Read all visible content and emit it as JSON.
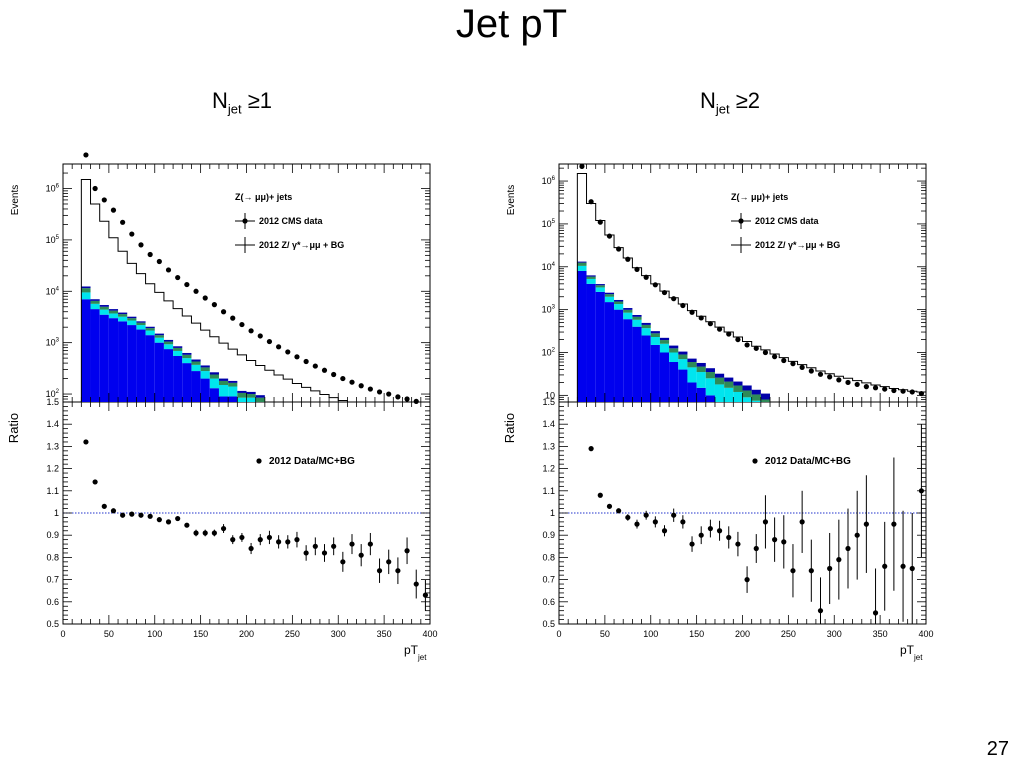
{
  "slide": {
    "title": "Jet pT",
    "panel_left_label": {
      "main": "N",
      "sub": "jet",
      "rest": " ≥1"
    },
    "panel_right_label": {
      "main": "N",
      "sub": "jet",
      "rest": " ≥2"
    },
    "page_number": "27"
  },
  "chart_data": [
    {
      "type": "bar",
      "subtype": "stacked-histogram-with-ratio",
      "title": "",
      "xlabel": "pT",
      "xlabel_sub": "jet",
      "xlim": [
        0,
        400
      ],
      "x_ticks": [
        0,
        50,
        100,
        150,
        200,
        250,
        300,
        350,
        400
      ],
      "x_tick_labels": [
        "0",
        "50",
        "100",
        "150",
        "200",
        "250",
        "300",
        "350",
        "400"
      ],
      "upper": {
        "ylabel": "Events",
        "yscale": "log",
        "ylim": [
          70,
          3000000
        ],
        "y_ticks": [
          100,
          1000,
          10000,
          100000,
          1000000
        ],
        "y_tick_labels": [
          {
            "base": "10",
            "exp": "2"
          },
          {
            "base": "10",
            "exp": "3"
          },
          {
            "base": "10",
            "exp": "4"
          },
          {
            "base": "10",
            "exp": "5"
          },
          {
            "base": "10",
            "exp": "6"
          }
        ],
        "legend_title": "Z(→ μμ)+ jets",
        "legend_placement": "top-right",
        "legend": [
          {
            "label": "2012 CMS data",
            "style": "marker"
          },
          {
            "label": "2012 Z/ γ*→μμ + BG",
            "style": "line"
          }
        ],
        "bin_edges": [
          20,
          30,
          40,
          50,
          60,
          70,
          80,
          90,
          100,
          110,
          120,
          130,
          140,
          150,
          160,
          170,
          180,
          190,
          200,
          210,
          220,
          230,
          240,
          250,
          260,
          270,
          280,
          290,
          300,
          310,
          320,
          330,
          340,
          350,
          360,
          370,
          380,
          390,
          400
        ],
        "mc_total": [
          1500000,
          500000,
          230000,
          110000,
          60000,
          35000,
          22000,
          14000,
          9500,
          6500,
          4600,
          3300,
          2400,
          1750,
          1300,
          980,
          750,
          580,
          450,
          360,
          290,
          235,
          195,
          160,
          135,
          115,
          98,
          85,
          75,
          66,
          58,
          52,
          46,
          42,
          38,
          35,
          32,
          30
        ],
        "data_x": [
          25,
          35,
          45,
          55,
          65,
          75,
          85,
          95,
          105,
          115,
          125,
          135,
          145,
          155,
          165,
          175,
          185,
          195,
          205,
          215,
          225,
          235,
          245,
          255,
          265,
          275,
          285,
          295,
          305,
          315,
          325,
          335,
          345,
          355,
          365,
          375,
          385,
          395
        ],
        "data_y": [
          4500000,
          1000000,
          600000,
          380000,
          220000,
          130000,
          80000,
          52000,
          38000,
          26000,
          18500,
          13500,
          10000,
          7400,
          5500,
          4000,
          3000,
          2250,
          1700,
          1350,
          1050,
          830,
          660,
          530,
          430,
          350,
          290,
          240,
          200,
          170,
          145,
          125,
          110,
          100,
          88,
          80,
          72,
          66
        ],
        "stack": [
          {
            "name": "",
            "color": "#0000ee",
            "values": [
              7000,
              4500,
              3500,
              3000,
              2600,
              2200,
              1800,
              1400,
              1000,
              750,
              550,
              400,
              280,
              200,
              130,
              90,
              90,
              45,
              45,
              30,
              0,
              0,
              0,
              0,
              0,
              0,
              0,
              0,
              0,
              0,
              0,
              0,
              0,
              0,
              0,
              0,
              0,
              0
            ]
          },
          {
            "name": "",
            "color": "#00e5ee",
            "values": [
              2500,
              1200,
              900,
              700,
              600,
              500,
              400,
              320,
              250,
              180,
              140,
              100,
              90,
              80,
              70,
              60,
              50,
              40,
              40,
              40,
              30,
              20,
              0,
              0,
              0,
              0,
              0,
              0,
              0,
              0,
              0,
              0,
              0,
              0,
              0,
              0,
              0,
              0
            ]
          },
          {
            "name": "",
            "color": "#2e8b57",
            "values": [
              2000,
              800,
              600,
              500,
              400,
              300,
              250,
              200,
              150,
              120,
              100,
              80,
              60,
              50,
              40,
              30,
              25,
              20,
              15,
              15,
              10,
              5,
              0,
              0,
              0,
              0,
              0,
              0,
              0,
              0,
              0,
              0,
              0,
              0,
              0,
              0,
              0,
              0
            ]
          },
          {
            "name": "",
            "color": "#0000aa",
            "values": [
              900,
              500,
              400,
              300,
              250,
              200,
              150,
              120,
              100,
              80,
              60,
              50,
              40,
              30,
              25,
              20,
              15,
              10,
              10,
              10,
              10,
              10,
              5,
              0,
              0,
              0,
              0,
              0,
              0,
              0,
              0,
              0,
              0,
              0,
              0,
              0,
              0,
              0
            ]
          }
        ]
      },
      "lower": {
        "ylabel": "Ratio",
        "ylim": [
          0.5,
          1.5
        ],
        "y_ticks": [
          0.5,
          0.6,
          0.7,
          0.8,
          0.9,
          1,
          1.1,
          1.2,
          1.3,
          1.4,
          1.5
        ],
        "y_tick_labels": [
          "0.5",
          "0.6",
          "0.7",
          "0.8",
          "0.9",
          "1",
          "1.1",
          "1.2",
          "1.3",
          "1.4",
          "1.5"
        ],
        "reference_line": 1,
        "legend": [
          {
            "label": "2012 Data/MC+BG",
            "style": "marker"
          }
        ],
        "x": [
          25,
          35,
          45,
          55,
          65,
          75,
          85,
          95,
          105,
          115,
          125,
          135,
          145,
          155,
          165,
          175,
          185,
          195,
          205,
          215,
          225,
          235,
          245,
          255,
          265,
          275,
          285,
          295,
          305,
          315,
          325,
          335,
          345,
          355,
          365,
          375,
          385,
          395
        ],
        "y": [
          1.32,
          1.14,
          1.03,
          1.01,
          0.99,
          0.995,
          0.99,
          0.985,
          0.97,
          0.96,
          0.975,
          0.945,
          0.91,
          0.91,
          0.91,
          0.93,
          0.88,
          0.89,
          0.84,
          0.88,
          0.89,
          0.87,
          0.87,
          0.88,
          0.82,
          0.85,
          0.82,
          0.85,
          0.78,
          0.86,
          0.81,
          0.86,
          0.74,
          0.78,
          0.74,
          0.83,
          0.68,
          0.63
        ],
        "err": [
          0,
          0,
          0,
          0,
          0,
          0,
          0,
          0,
          0,
          0,
          0.01,
          0.01,
          0.015,
          0.015,
          0.015,
          0.02,
          0.02,
          0.02,
          0.025,
          0.025,
          0.03,
          0.03,
          0.03,
          0.035,
          0.035,
          0.04,
          0.04,
          0.04,
          0.045,
          0.045,
          0.05,
          0.05,
          0.055,
          0.055,
          0.06,
          0.06,
          0.065,
          0.07
        ]
      }
    },
    {
      "type": "bar",
      "subtype": "stacked-histogram-with-ratio",
      "title": "",
      "xlabel": "pT",
      "xlabel_sub": "jet",
      "xlim": [
        0,
        400
      ],
      "x_ticks": [
        0,
        50,
        100,
        150,
        200,
        250,
        300,
        350,
        400
      ],
      "x_tick_labels": [
        "0",
        "50",
        "100",
        "150",
        "200",
        "250",
        "300",
        "350",
        "400"
      ],
      "upper": {
        "ylabel": "Events",
        "yscale": "log",
        "ylim": [
          7,
          2500000
        ],
        "y_ticks": [
          10,
          100,
          1000,
          10000,
          100000,
          1000000
        ],
        "y_tick_labels": [
          {
            "base": "10",
            "exp": ""
          },
          {
            "base": "10",
            "exp": "2"
          },
          {
            "base": "10",
            "exp": "3"
          },
          {
            "base": "10",
            "exp": "4"
          },
          {
            "base": "10",
            "exp": "5"
          },
          {
            "base": "10",
            "exp": "6"
          }
        ],
        "legend_title": "Z(→ μμ)+ jets",
        "legend_placement": "top-right",
        "legend": [
          {
            "label": "2012 CMS data",
            "style": "marker"
          },
          {
            "label": "2012 Z/ γ*→μμ + BG",
            "style": "line"
          }
        ],
        "bin_edges": [
          20,
          30,
          40,
          50,
          60,
          70,
          80,
          90,
          100,
          110,
          120,
          130,
          140,
          150,
          160,
          170,
          180,
          190,
          200,
          210,
          220,
          230,
          240,
          250,
          260,
          270,
          280,
          290,
          300,
          310,
          320,
          330,
          340,
          350,
          360,
          370,
          380,
          390,
          400
        ],
        "mc_total": [
          1500000,
          300000,
          120000,
          55000,
          28000,
          16000,
          9500,
          6200,
          4000,
          2700,
          1900,
          1350,
          950,
          700,
          520,
          390,
          300,
          230,
          180,
          140,
          115,
          92,
          76,
          62,
          52,
          44,
          37,
          32,
          28,
          25,
          22,
          19.5,
          17.5,
          16,
          14.5,
          13.5,
          12.5,
          12
        ],
        "data_x": [
          25,
          35,
          45,
          55,
          65,
          75,
          85,
          95,
          105,
          115,
          125,
          135,
          145,
          155,
          165,
          175,
          185,
          195,
          205,
          215,
          225,
          235,
          245,
          255,
          265,
          275,
          285,
          295,
          305,
          315,
          325,
          335,
          345,
          355,
          365,
          375,
          385,
          395
        ],
        "data_y": [
          2200000,
          330000,
          110000,
          52000,
          26000,
          15000,
          8700,
          5700,
          3800,
          2500,
          1800,
          1250,
          870,
          640,
          470,
          350,
          270,
          200,
          150,
          125,
          100,
          80,
          65,
          55,
          45,
          37,
          31,
          27,
          23,
          20,
          18,
          16,
          15,
          14,
          13,
          12.5,
          12,
          11
        ],
        "stack": [
          {
            "name": "",
            "color": "#0000ee",
            "values": [
              8000,
              4000,
              2600,
              1500,
              1000,
              600,
              400,
              250,
              150,
              100,
              60,
              40,
              20,
              15,
              10,
              6,
              5,
              4,
              3,
              2.5,
              2,
              0,
              0,
              0,
              0,
              0,
              0,
              0,
              0,
              0,
              0,
              0,
              0,
              0,
              0,
              0,
              0,
              0
            ]
          },
          {
            "name": "",
            "color": "#00e5ee",
            "values": [
              2500,
              1200,
              700,
              500,
              350,
              250,
              180,
              120,
              80,
              60,
              40,
              30,
              25,
              20,
              15,
              12,
              10,
              8,
              6,
              5,
              4,
              2,
              0,
              0,
              0,
              0,
              0,
              0,
              0,
              0,
              0,
              0,
              0,
              0,
              0,
              0,
              0,
              0
            ]
          },
          {
            "name": "",
            "color": "#2e8b57",
            "values": [
              2000,
              700,
              400,
              300,
              200,
              140,
              100,
              70,
              50,
              35,
              25,
              20,
              15,
              12,
              10,
              8,
              6,
              5,
              4,
              3,
              2,
              0,
              0,
              0,
              0,
              0,
              0,
              0,
              0,
              0,
              0,
              0,
              0,
              0,
              0,
              0,
              0,
              0
            ]
          },
          {
            "name": "",
            "color": "#0000aa",
            "values": [
              700,
              400,
              250,
              180,
              130,
              100,
              70,
              50,
              35,
              25,
              20,
              15,
              12,
              10,
              8,
              6,
              5,
              4,
              4,
              3,
              3,
              2,
              0,
              0,
              2,
              3,
              0,
              0,
              0,
              0,
              0,
              0,
              0,
              0,
              0,
              0,
              0,
              0
            ]
          }
        ]
      },
      "lower": {
        "ylabel": "Ratio",
        "ylim": [
          0.5,
          1.5
        ],
        "y_ticks": [
          0.5,
          0.6,
          0.7,
          0.8,
          0.9,
          1,
          1.1,
          1.2,
          1.3,
          1.4,
          1.5
        ],
        "y_tick_labels": [
          "0.5",
          "0.6",
          "0.7",
          "0.8",
          "0.9",
          "1",
          "1.1",
          "1.2",
          "1.3",
          "1.4",
          "1.5"
        ],
        "reference_line": 1,
        "legend": [
          {
            "label": "2012 Data/MC+BG",
            "style": "marker"
          }
        ],
        "x": [
          35,
          45,
          55,
          65,
          75,
          85,
          95,
          105,
          115,
          125,
          135,
          145,
          155,
          165,
          175,
          185,
          195,
          205,
          215,
          225,
          235,
          245,
          255,
          265,
          275,
          285,
          295,
          305,
          315,
          325,
          335,
          345,
          355,
          365,
          375,
          385,
          395
        ],
        "y": [
          1.29,
          1.08,
          1.03,
          1.01,
          0.98,
          0.95,
          0.99,
          0.96,
          0.92,
          0.99,
          0.96,
          0.86,
          0.9,
          0.93,
          0.92,
          0.89,
          0.86,
          0.7,
          0.84,
          0.96,
          0.88,
          0.87,
          0.74,
          0.96,
          0.74,
          0.56,
          0.75,
          0.79,
          0.84,
          0.9,
          0.95,
          0.55,
          0.76,
          0.95,
          0.76,
          0.75,
          1.1
        ],
        "err": [
          0.005,
          0.01,
          0.01,
          0.01,
          0.015,
          0.02,
          0.02,
          0.025,
          0.025,
          0.03,
          0.03,
          0.035,
          0.04,
          0.04,
          0.045,
          0.05,
          0.055,
          0.06,
          0.065,
          0.12,
          0.1,
          0.12,
          0.12,
          0.14,
          0.14,
          0.15,
          0.16,
          0.18,
          0.18,
          0.2,
          0.22,
          0.2,
          0.2,
          0.3,
          0.25,
          0.25,
          0.3
        ]
      }
    }
  ]
}
